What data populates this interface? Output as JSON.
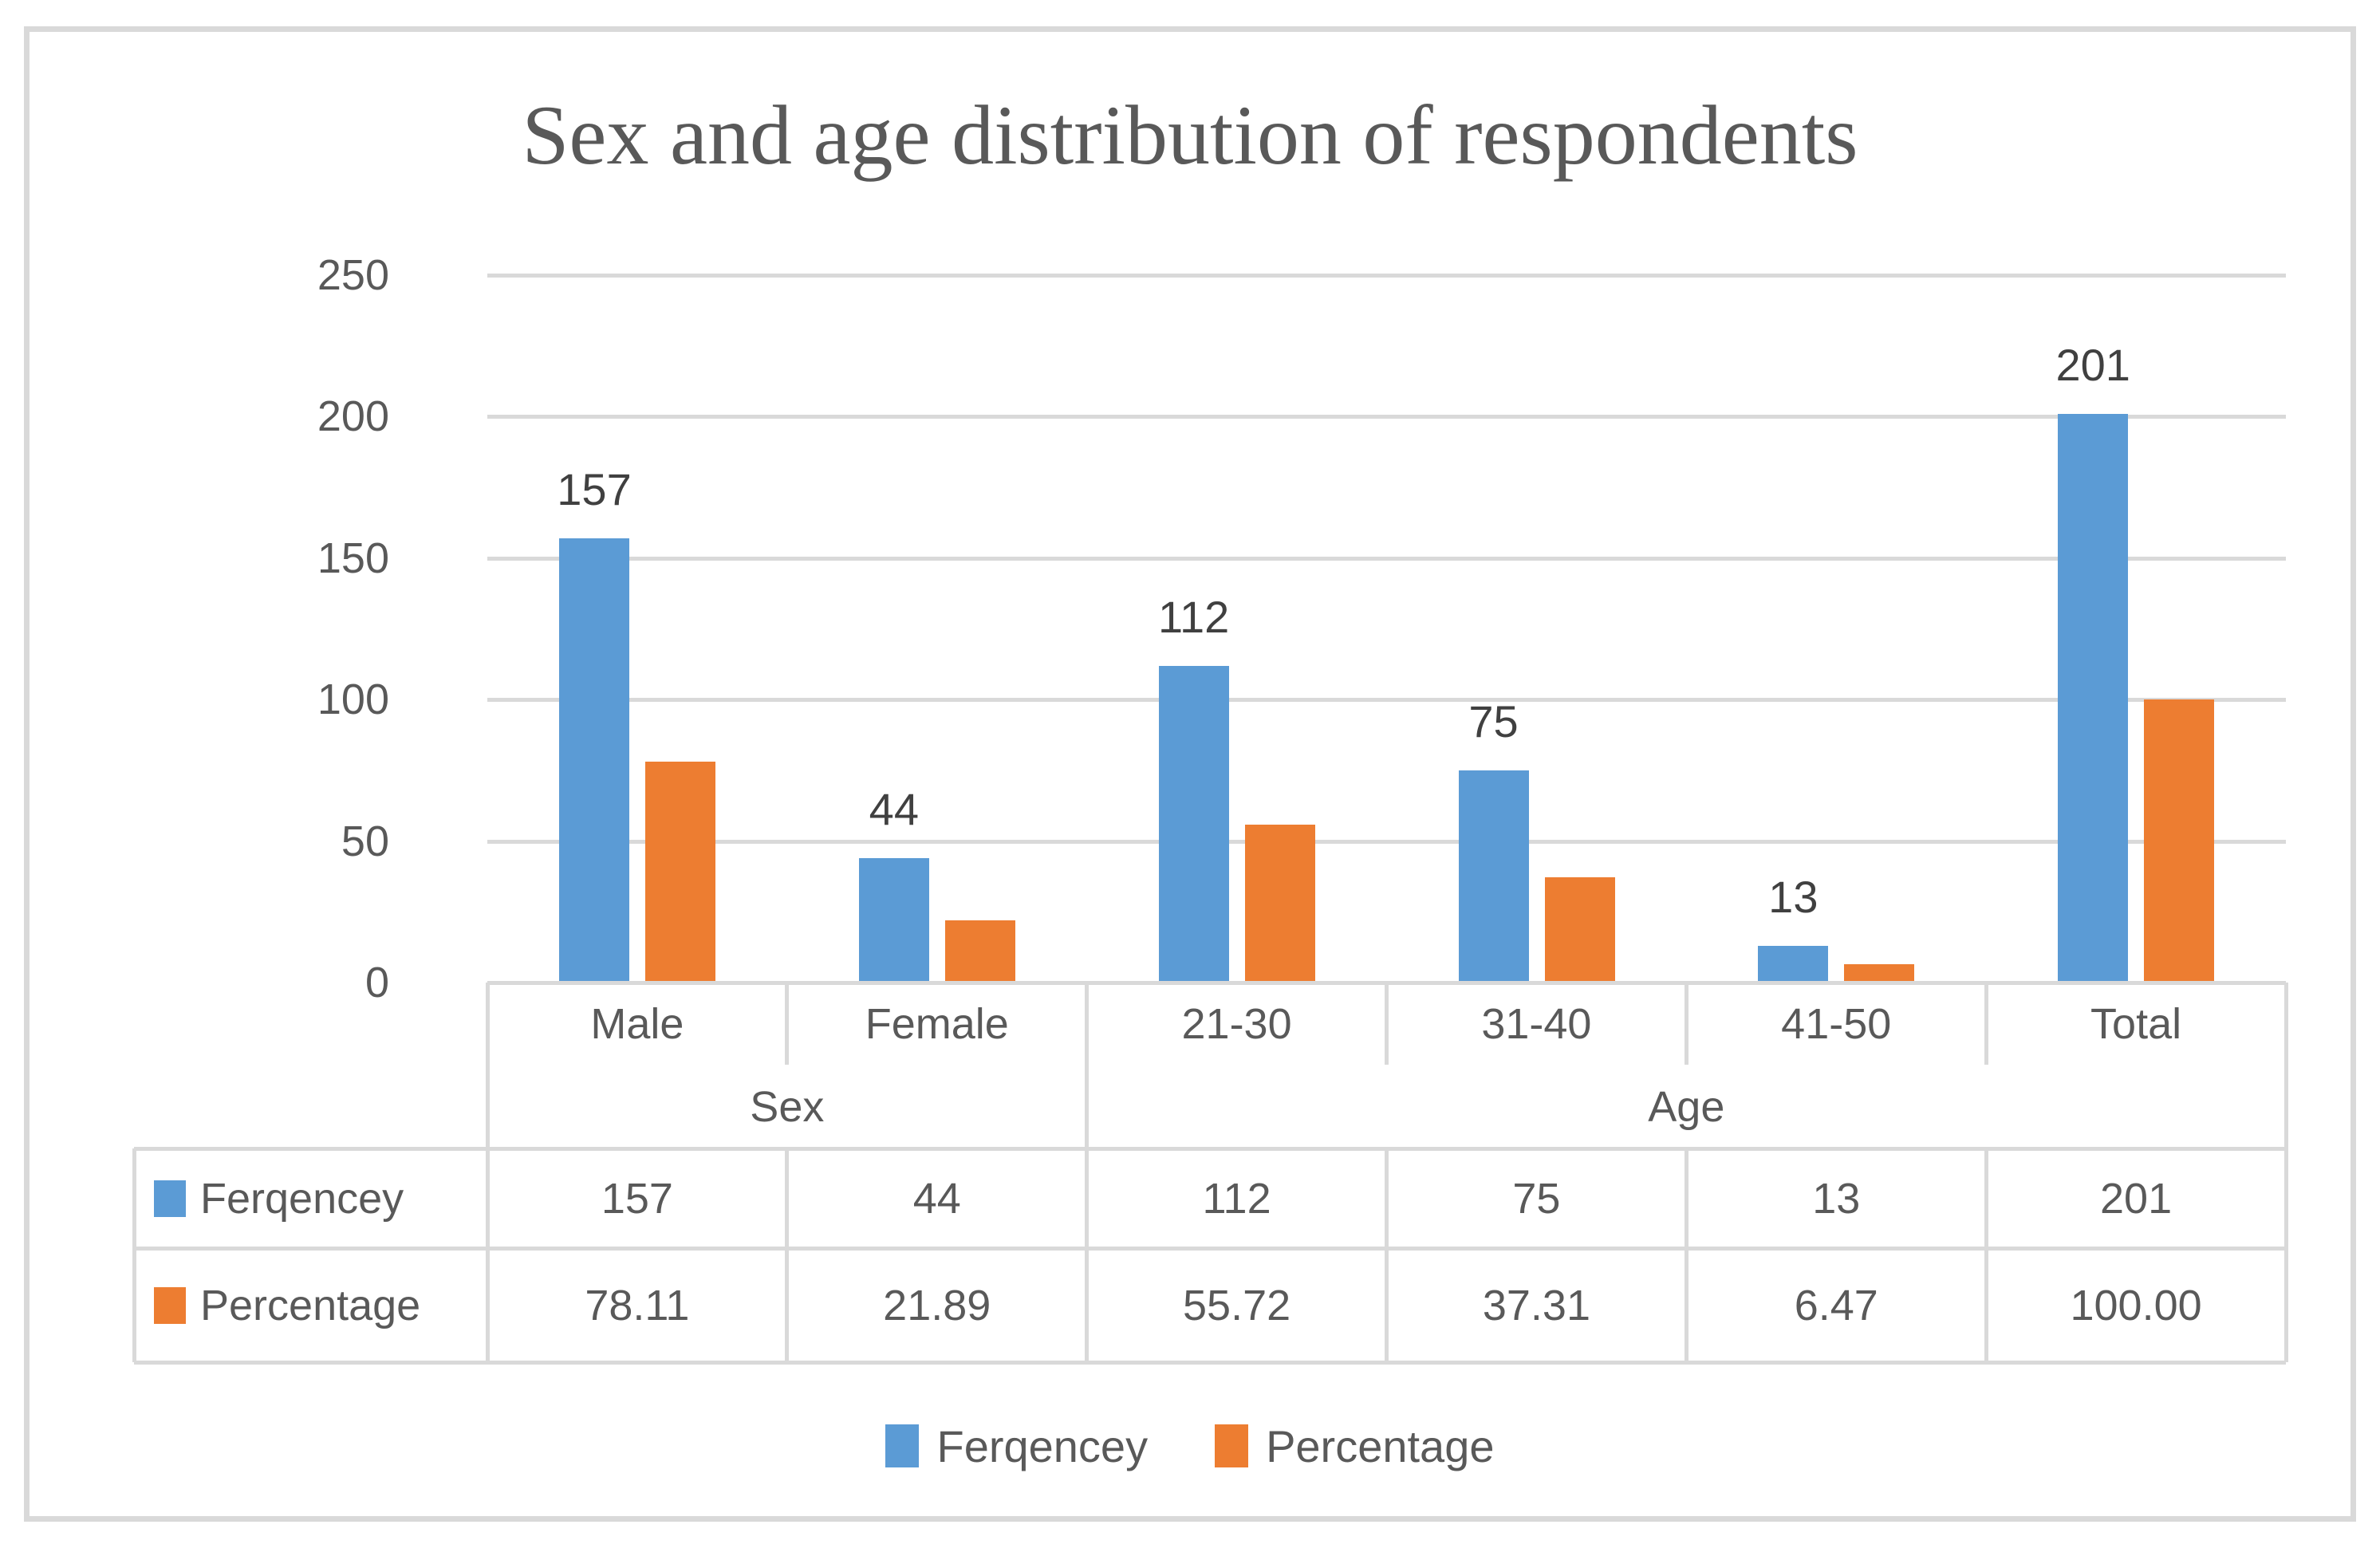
{
  "chart_data": {
    "type": "bar",
    "title": "Sex and age distribution of respondents",
    "categories": [
      "Male",
      "Female",
      "21-30",
      "31-40",
      "41-50",
      "Total"
    ],
    "category_groups": [
      {
        "label": "Sex",
        "span": 2
      },
      {
        "label": "Age",
        "span": 4
      }
    ],
    "series": [
      {
        "name": "Ferqencey",
        "color": "#5B9BD5",
        "values": [
          157,
          44,
          112,
          75,
          13,
          201
        ],
        "display_values": [
          "157",
          "44",
          "112",
          "75",
          "13",
          "201"
        ],
        "data_labels_shown": true
      },
      {
        "name": "Percentage",
        "color": "#ED7D31",
        "values": [
          78.11,
          21.89,
          55.72,
          37.31,
          6.47,
          100.0
        ],
        "display_values": [
          "78.11",
          "21.89",
          "55.72",
          "37.31",
          "6.47",
          "100.00"
        ],
        "data_labels_shown": false
      }
    ],
    "y_axis": {
      "min": 0,
      "max": 250,
      "tick_step": 50,
      "tick_labels": [
        "0",
        "50",
        "100",
        "150",
        "200",
        "250"
      ]
    },
    "grid": true,
    "legend_position": "bottom",
    "data_table_shown": true
  },
  "legend": {
    "items": [
      {
        "label": "Ferqencey",
        "color": "#5B9BD5"
      },
      {
        "label": "Percentage",
        "color": "#ED7D31"
      }
    ]
  },
  "colors": {
    "series_blue": "#5B9BD5",
    "series_orange": "#ED7D31",
    "gridline_gray": "#D9D9D9",
    "text_gray": "#595959",
    "data_label_gray": "#404040",
    "background": "#FFFFFF"
  }
}
